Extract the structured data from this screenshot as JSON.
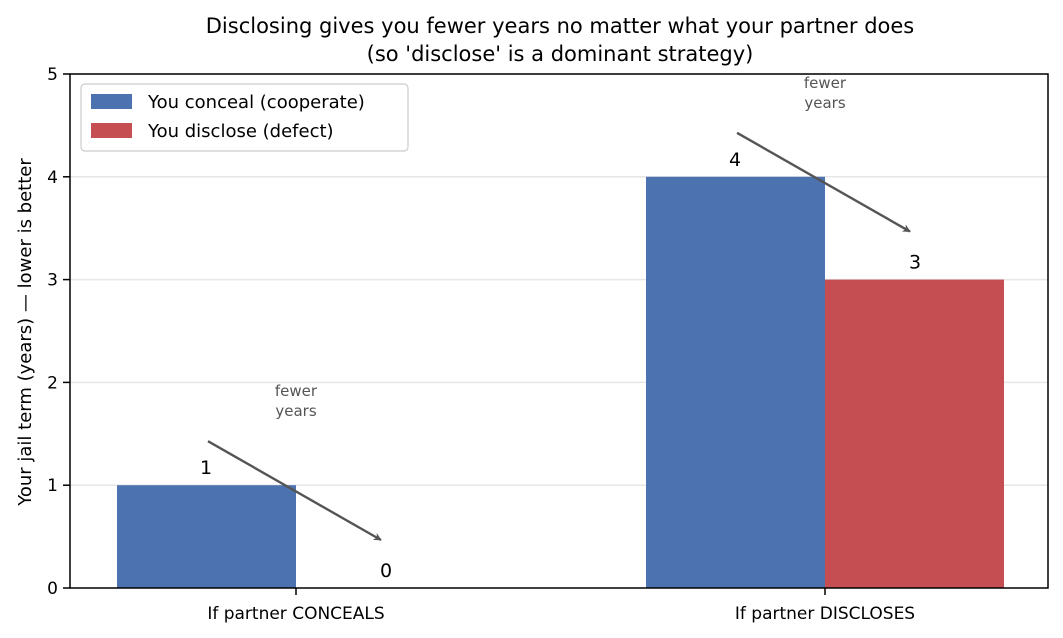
{
  "chart_data": {
    "type": "bar",
    "title_line1": "Disclosing gives you fewer years no matter what your partner does",
    "title_line2": "(so 'disclose' is a dominant strategy)",
    "xlabel": "",
    "ylabel": "Your jail term (years)  —  lower is better",
    "categories": [
      "If partner CONCEALS",
      "If partner DISCLOSES"
    ],
    "series": [
      {
        "name": "You conceal (cooperate)",
        "values": [
          1,
          4
        ],
        "color": "#4c72b0"
      },
      {
        "name": "You disclose (defect)",
        "values": [
          0,
          3
        ],
        "color": "#c44e52"
      }
    ],
    "ylim": [
      0,
      5
    ],
    "yticks": [
      0,
      1,
      2,
      3,
      4,
      5
    ],
    "grid": "y",
    "legend_position": "top-left",
    "annotations": [
      {
        "text_line1": "fewer",
        "text_line2": "years",
        "category": 0,
        "from_value": 1,
        "to_value": 0
      },
      {
        "text_line1": "fewer",
        "text_line2": "years",
        "category": 1,
        "from_value": 4,
        "to_value": 3
      }
    ],
    "arrow_color": "#555555"
  }
}
